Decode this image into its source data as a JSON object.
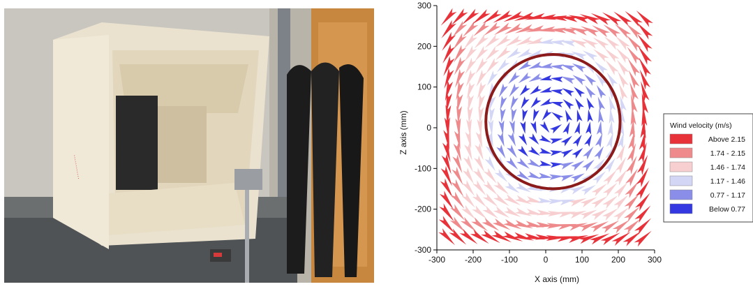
{
  "photo": {
    "description_icon": "wind-tunnel-photo",
    "box_stamp": "············"
  },
  "chart_data": {
    "type": "quiver",
    "xlabel": "X axis (mm)",
    "ylabel": "Z axis (mm)",
    "xlim": [
      -300,
      300
    ],
    "ylim": [
      -300,
      300
    ],
    "xticks": [
      "-300",
      "-200",
      "-100",
      "0",
      "100",
      "200",
      "300"
    ],
    "yticks": [
      "300",
      "200",
      "100",
      "0",
      "-100",
      "-200",
      "-300"
    ],
    "grid": false,
    "vortex_center": [
      20,
      15
    ],
    "circle": {
      "center": [
        20,
        15
      ],
      "radius": 185,
      "color": "#8b1a1a"
    },
    "legend": {
      "title": "Wind velocity (m/s)",
      "placement": "right",
      "entries": [
        {
          "label": "Above  2.15",
          "color": "#e8323a"
        },
        {
          "label": "1.74 - 2.15",
          "color": "#ef8a8c"
        },
        {
          "label": "1.46 - 1.74",
          "color": "#f7cfd0"
        },
        {
          "label": "1.17 - 1.46",
          "color": "#d4d6f5"
        },
        {
          "label": "0.77 - 1.17",
          "color": "#8a8ee8"
        },
        {
          "label": "Below  0.77",
          "color": "#3438e0"
        }
      ]
    }
  }
}
